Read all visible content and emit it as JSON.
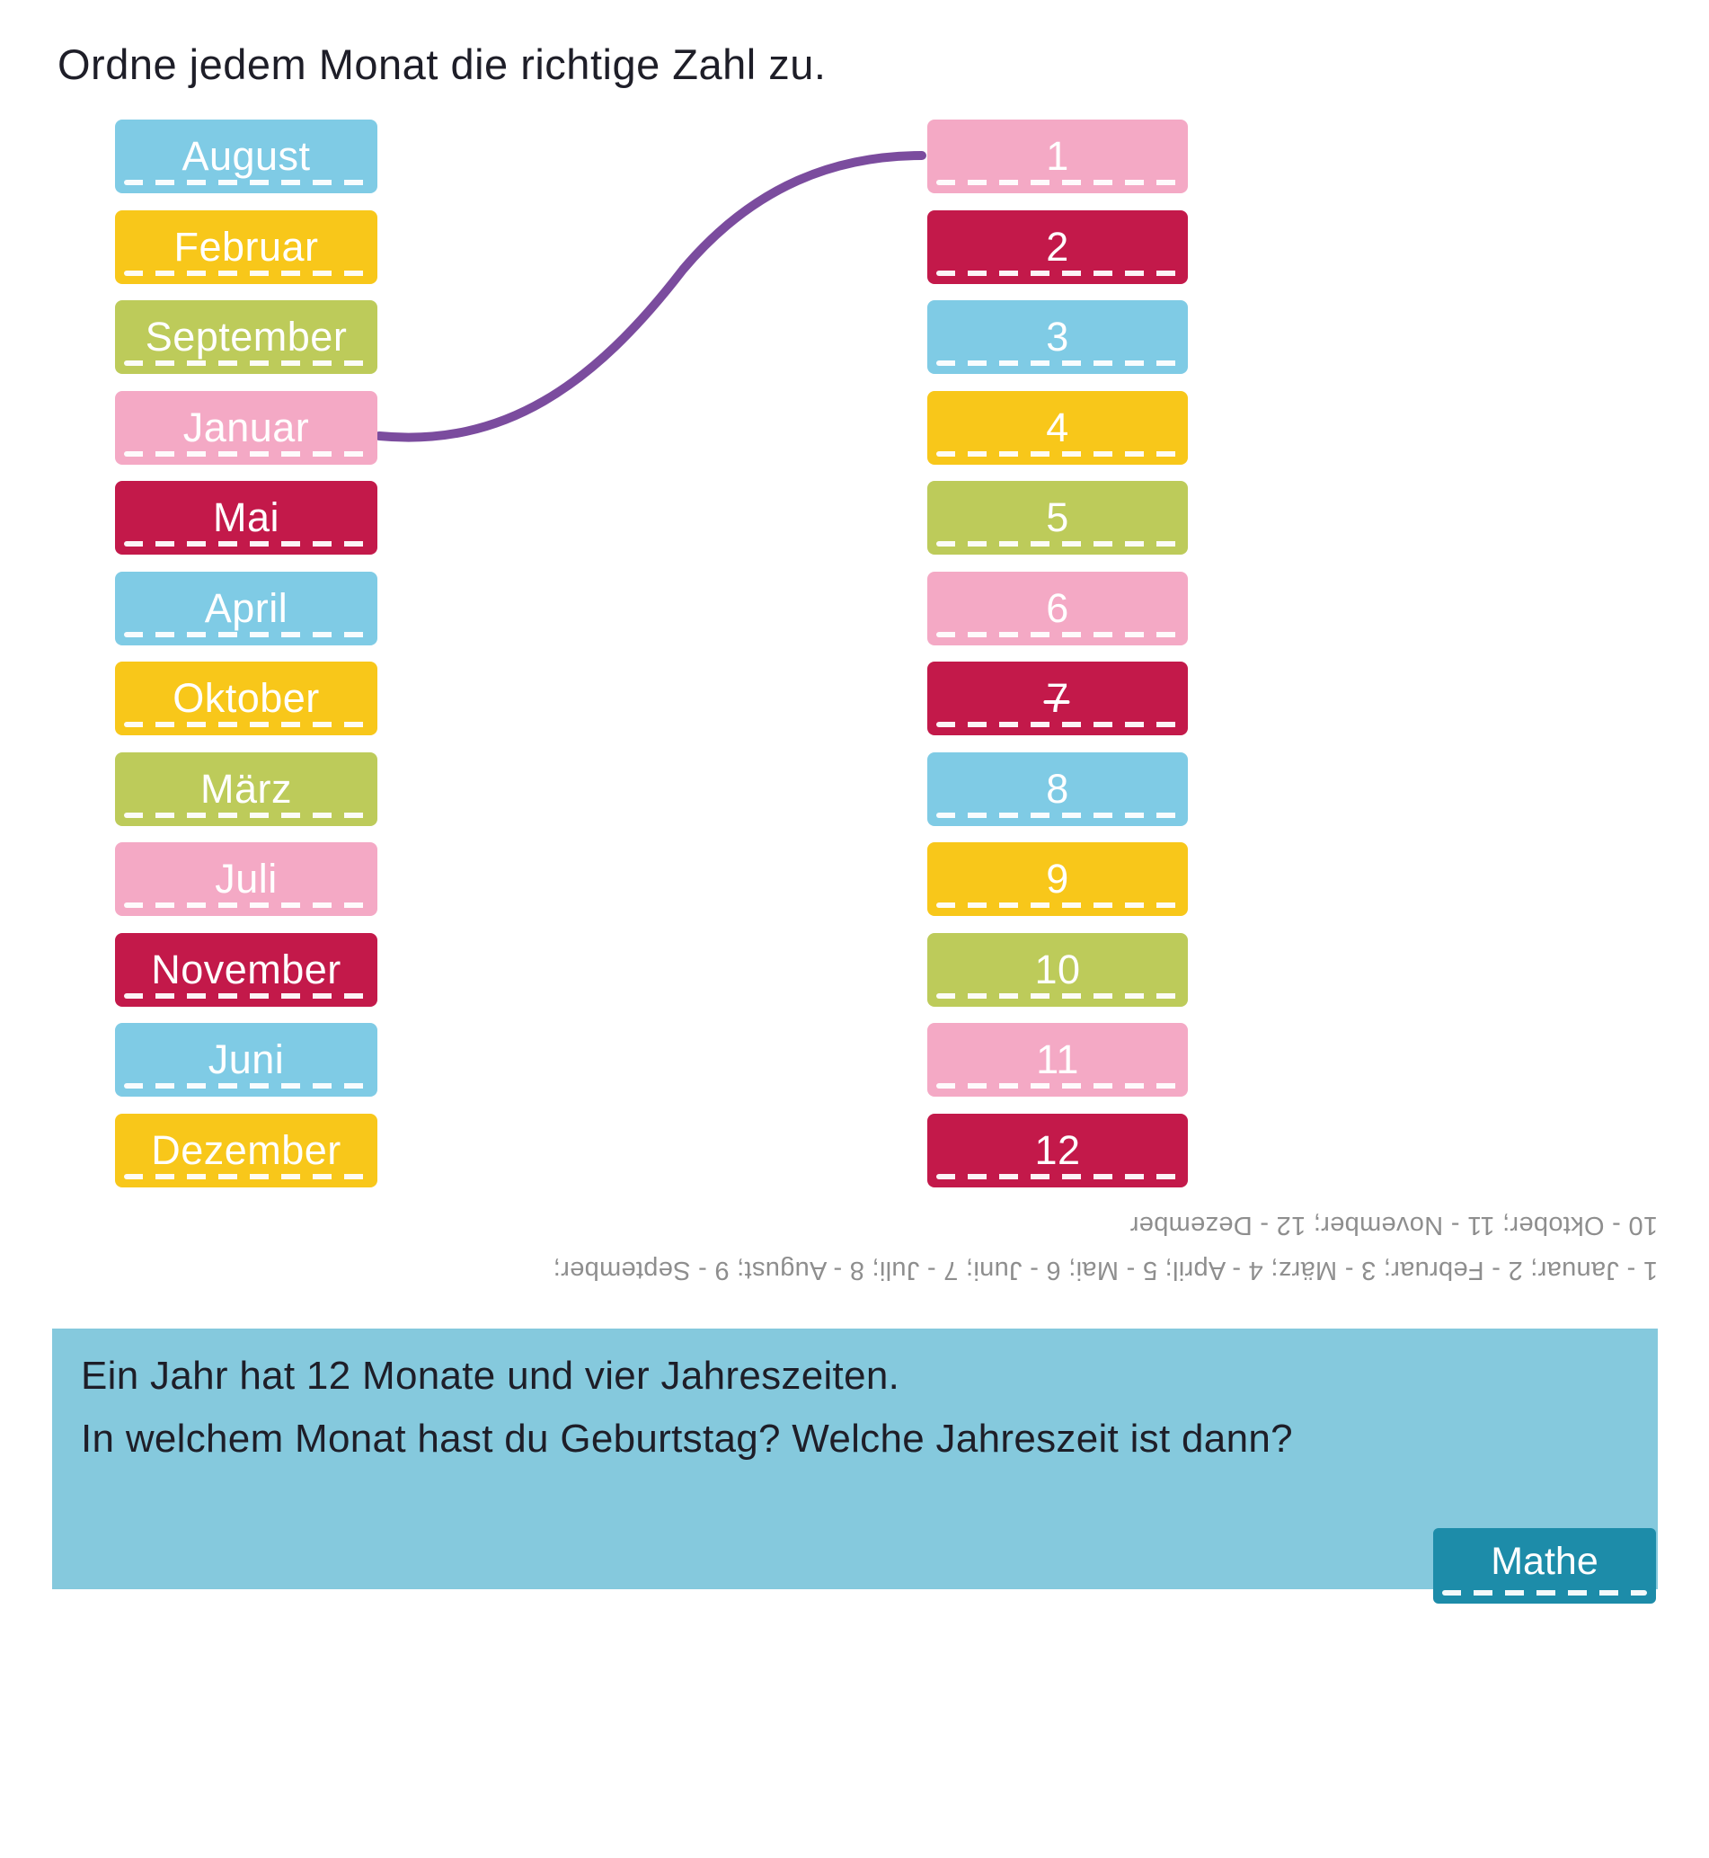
{
  "title": "Ordne jedem Monat die richtige Zahl zu.",
  "palette": {
    "blue": "#7FCBE5",
    "yellow": "#F8C71A",
    "green": "#BDCB5A",
    "pink": "#F4A9C5",
    "crimson": "#C3194A",
    "connector_purple": "#7B4C9E",
    "info_box_blue": "#85C9DD",
    "badge_teal": "#1D8CA9",
    "solution_gray": "#8E8E8E",
    "text_dark": "#1E1E28"
  },
  "months": [
    {
      "label": "August",
      "color": "blue"
    },
    {
      "label": "Februar",
      "color": "yellow"
    },
    {
      "label": "September",
      "color": "green"
    },
    {
      "label": "Januar",
      "color": "pink"
    },
    {
      "label": "Mai",
      "color": "crimson"
    },
    {
      "label": "April",
      "color": "blue"
    },
    {
      "label": "Oktober",
      "color": "yellow"
    },
    {
      "label": "März",
      "color": "green"
    },
    {
      "label": "Juli",
      "color": "pink"
    },
    {
      "label": "November",
      "color": "crimson"
    },
    {
      "label": "Juni",
      "color": "blue"
    },
    {
      "label": "Dezember",
      "color": "yellow"
    }
  ],
  "numbers": [
    {
      "label": "1",
      "color": "pink"
    },
    {
      "label": "2",
      "color": "crimson"
    },
    {
      "label": "3",
      "color": "blue"
    },
    {
      "label": "4",
      "color": "yellow"
    },
    {
      "label": "5",
      "color": "green"
    },
    {
      "label": "6",
      "color": "pink"
    },
    {
      "label": "7",
      "color": "crimson",
      "crossed": true
    },
    {
      "label": "8",
      "color": "blue"
    },
    {
      "label": "9",
      "color": "yellow"
    },
    {
      "label": "10",
      "color": "green"
    },
    {
      "label": "11",
      "color": "pink"
    },
    {
      "label": "12",
      "color": "crimson"
    }
  ],
  "connection": {
    "from_month": "Januar",
    "to_number": "1"
  },
  "solution": {
    "line1": "1 - Januar; 2 - Februar; 3 - März; 4 - April; 5 - Mai; 6 - Juni; 7 - Juli; 8 - August; 9 - September;",
    "line2": "10 - Oktober; 11 - November; 12 - Dezember"
  },
  "info_box": {
    "line1": "Ein Jahr hat 12 Monate und vier Jahreszeiten.",
    "line2": "In welchem Monat hast du Geburtstag? Welche Jahreszeit ist dann?",
    "badge": "Mathe"
  }
}
